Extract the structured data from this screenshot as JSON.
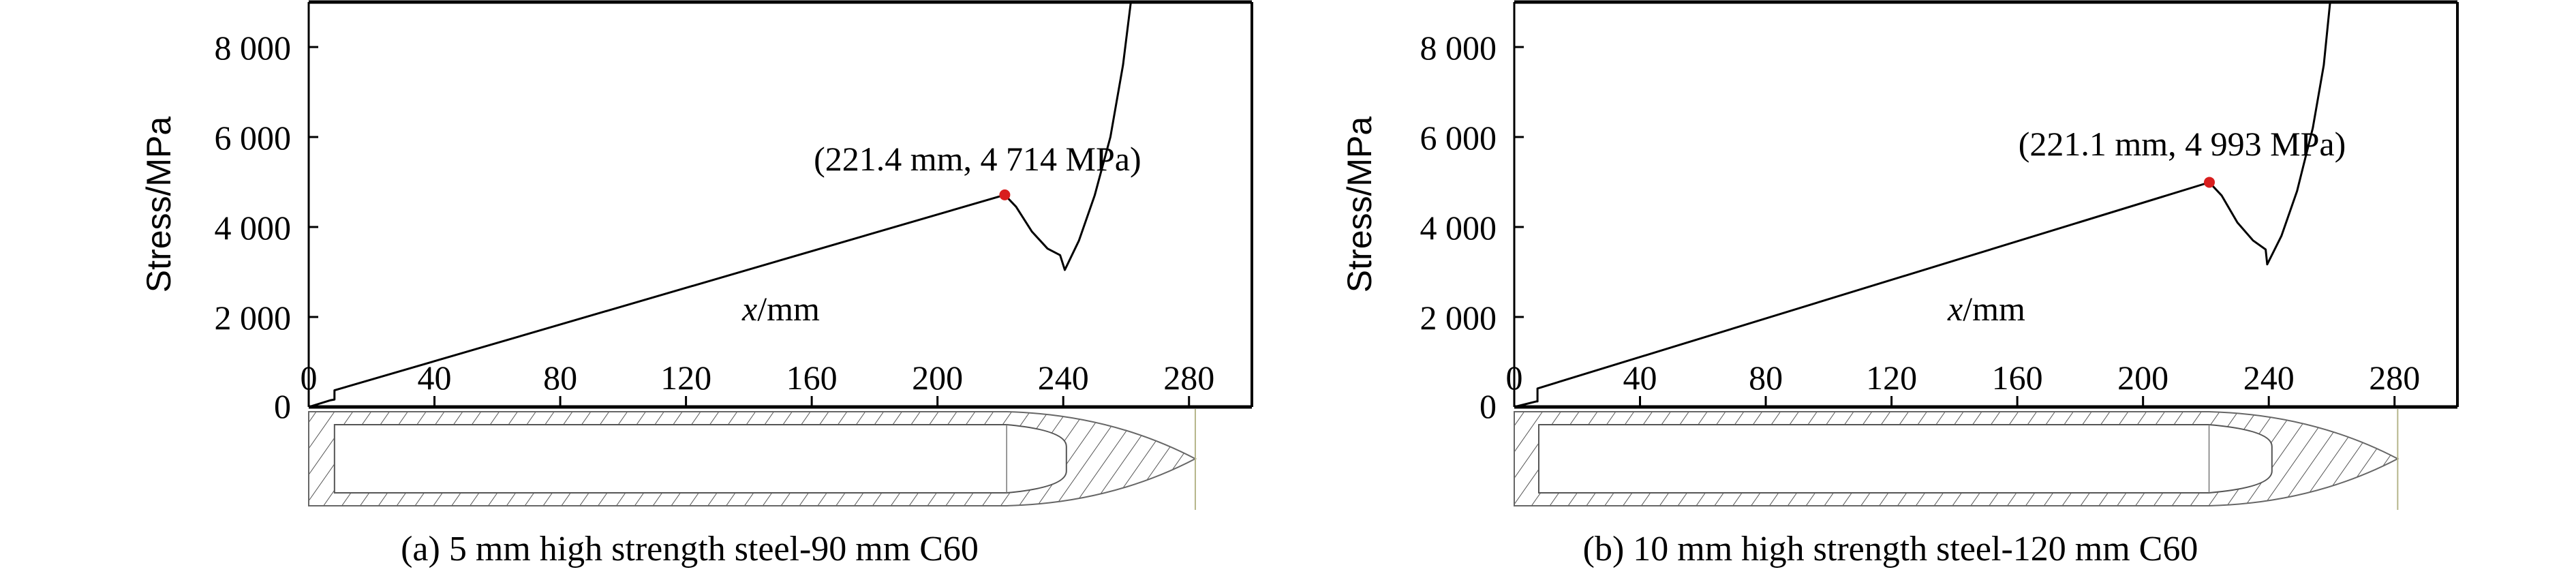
{
  "colors": {
    "curve": "#000000",
    "peak_marker": "#d81e1e",
    "hatch": "#555555",
    "tip_line": "#b5b58a"
  },
  "chart_data": [
    {
      "type": "line",
      "panel": "a",
      "caption": "(a) 5 mm high strength steel-90 mm C60",
      "xlabel_italic": "x",
      "xlabel_unit": "/mm",
      "ylabel": "Stress/MPa",
      "xlim": [
        0,
        300
      ],
      "ylim": [
        0,
        9000
      ],
      "xticks": [
        0,
        40,
        80,
        120,
        160,
        200,
        240,
        280
      ],
      "xtick_labels": [
        "0",
        "40",
        "80",
        "120",
        "160",
        "200",
        "240",
        "280"
      ],
      "yticks": [
        0,
        2000,
        4000,
        6000,
        8000
      ],
      "ytick_labels": [
        "0",
        "2 000",
        "4 000",
        "6 000",
        "8 000"
      ],
      "annotation": "(221.4 mm, 4 714 MPa)",
      "peak": [
        221.4,
        4714
      ],
      "series": [
        {
          "name": "stress",
          "points": [
            [
              0,
              0
            ],
            [
              7,
              150
            ],
            [
              8.2,
              165
            ],
            [
              8.2,
              370
            ],
            [
              221.4,
              4714
            ],
            [
              225,
              4450
            ],
            [
              230,
              3900
            ],
            [
              235,
              3520
            ],
            [
              239,
              3375
            ],
            [
              240.5,
              3045
            ],
            [
              245,
              3700
            ],
            [
              250,
              4700
            ],
            [
              255,
              6000
            ],
            [
              259,
              7600
            ],
            [
              261.5,
              9000
            ]
          ]
        }
      ],
      "diagram": {
        "x_start": 0,
        "cavity_start": 8.2,
        "body_end": 222,
        "cavity_nose_end": 241,
        "tip": 282
      }
    },
    {
      "type": "line",
      "panel": "b",
      "caption": "(b) 10 mm high strength steel-120 mm C60",
      "xlabel_italic": "x",
      "xlabel_unit": "/mm",
      "ylabel": "Stress/MPa",
      "xlim": [
        0,
        300
      ],
      "ylim": [
        0,
        9000
      ],
      "xticks": [
        0,
        40,
        80,
        120,
        160,
        200,
        240,
        280
      ],
      "xtick_labels": [
        "0",
        "40",
        "80",
        "120",
        "160",
        "200",
        "240",
        "280"
      ],
      "yticks": [
        0,
        2000,
        4000,
        6000,
        8000
      ],
      "ytick_labels": [
        "0",
        "2 000",
        "4 000",
        "6 000",
        "8 000"
      ],
      "annotation": "(221.1 mm, 4 993 MPa)",
      "peak": [
        221.1,
        4993
      ],
      "series": [
        {
          "name": "stress",
          "points": [
            [
              0,
              0
            ],
            [
              7,
              123
            ],
            [
              7.4,
              123
            ],
            [
              7.4,
              411
            ],
            [
              221.1,
              4993
            ],
            [
              225,
              4700
            ],
            [
              230,
              4100
            ],
            [
              235,
              3700
            ],
            [
              239,
              3500
            ],
            [
              239.5,
              3170
            ],
            [
              244,
              3800
            ],
            [
              249,
              4800
            ],
            [
              254,
              6200
            ],
            [
              257.5,
              7600
            ],
            [
              259.5,
              9000
            ]
          ]
        }
      ],
      "diagram": {
        "x_start": 0,
        "cavity_start": 7.8,
        "body_end": 221,
        "cavity_nose_end": 241,
        "tip": 281
      }
    }
  ]
}
